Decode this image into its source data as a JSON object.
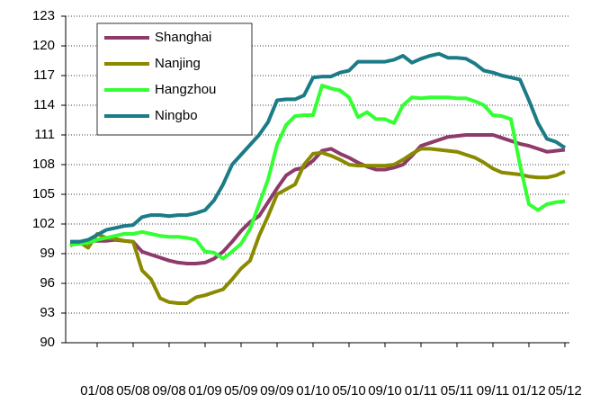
{
  "chart_data": {
    "type": "line",
    "categories": [
      null,
      null,
      null,
      "01/08",
      null,
      null,
      null,
      "05/08",
      null,
      null,
      null,
      "09/08",
      null,
      null,
      null,
      "01/09",
      null,
      null,
      null,
      "05/09",
      null,
      null,
      null,
      "09/09",
      null,
      null,
      null,
      "01/10",
      null,
      null,
      null,
      "05/10",
      null,
      null,
      null,
      "09/10",
      null,
      null,
      null,
      "01/11",
      null,
      null,
      null,
      "05/11",
      null,
      null,
      null,
      "09/11",
      null,
      null,
      null,
      "01/12",
      null,
      null,
      null,
      "05/12"
    ],
    "series": [
      {
        "name": "Shanghai",
        "color": "#8e3a6b",
        "values": [
          100.2,
          100.2,
          100.3,
          100.3,
          100.3,
          100.4,
          100.3,
          100.2,
          99.2,
          98.9,
          98.6,
          98.3,
          98.1,
          98.0,
          98.0,
          98.1,
          98.5,
          99.2,
          100.2,
          101.3,
          102.2,
          102.8,
          104.2,
          105.6,
          106.9,
          107.5,
          107.7,
          108.4,
          109.4,
          109.6,
          109.1,
          108.7,
          108.2,
          107.8,
          107.5,
          107.5,
          107.7,
          108.0,
          108.9,
          109.9,
          110.2,
          110.5,
          110.8,
          110.9,
          111.0,
          111.0,
          111.0,
          111.0,
          110.7,
          110.4,
          110.1,
          109.9,
          109.6,
          109.3,
          109.4,
          109.5
        ]
      },
      {
        "name": "Nanjing",
        "color": "#8a8a00",
        "values": [
          99.8,
          100.2,
          99.6,
          101.0,
          100.6,
          100.5,
          100.3,
          100.2,
          97.3,
          96.4,
          94.5,
          94.1,
          94.0,
          94.0,
          94.6,
          94.8,
          95.1,
          95.4,
          96.4,
          97.5,
          98.3,
          100.8,
          102.8,
          105.0,
          105.5,
          106.0,
          108.0,
          109.1,
          109.2,
          108.9,
          108.5,
          108.0,
          107.9,
          107.9,
          107.9,
          107.9,
          108.0,
          108.5,
          109.1,
          109.6,
          109.6,
          109.5,
          109.4,
          109.3,
          109.0,
          108.7,
          108.2,
          107.6,
          107.2,
          107.1,
          107.0,
          106.8,
          106.7,
          106.7,
          106.9,
          107.3
        ]
      },
      {
        "name": "Hangzhou",
        "color": "#33ff33",
        "values": [
          99.9,
          100.0,
          100.1,
          100.4,
          100.6,
          100.8,
          101.0,
          101.0,
          101.2,
          101.0,
          100.8,
          100.7,
          100.7,
          100.6,
          100.4,
          99.2,
          99.1,
          98.5,
          99.2,
          100.0,
          101.5,
          104.0,
          106.5,
          110.0,
          112.0,
          112.9,
          113.0,
          113.0,
          116.0,
          115.7,
          115.5,
          114.8,
          112.8,
          113.3,
          112.6,
          112.6,
          112.2,
          114.0,
          114.8,
          114.7,
          114.8,
          114.8,
          114.8,
          114.7,
          114.7,
          114.4,
          114.0,
          113.0,
          112.9,
          112.6,
          108.0,
          104.0,
          103.4,
          104.0,
          104.2,
          104.3
        ]
      },
      {
        "name": "Ningbo",
        "color": "#1b7b86",
        "values": [
          100.2,
          100.2,
          100.4,
          100.9,
          101.4,
          101.6,
          101.8,
          101.9,
          102.7,
          102.9,
          102.9,
          102.8,
          102.9,
          102.9,
          103.1,
          103.4,
          104.4,
          106.0,
          108.0,
          109.0,
          110.0,
          111.0,
          112.3,
          114.5,
          114.6,
          114.6,
          115.0,
          116.8,
          116.9,
          116.9,
          117.3,
          117.5,
          118.4,
          118.4,
          118.4,
          118.4,
          118.6,
          119.0,
          118.3,
          118.7,
          119.0,
          119.2,
          118.8,
          118.8,
          118.7,
          118.2,
          117.5,
          117.3,
          117.0,
          116.8,
          116.6,
          114.5,
          112.2,
          110.6,
          110.3,
          109.7
        ]
      }
    ],
    "ylim": [
      90,
      123
    ],
    "yticks": [
      90,
      93,
      96,
      99,
      102,
      105,
      108,
      111,
      114,
      117,
      120,
      123
    ],
    "grid": true,
    "legend": "top-left"
  }
}
